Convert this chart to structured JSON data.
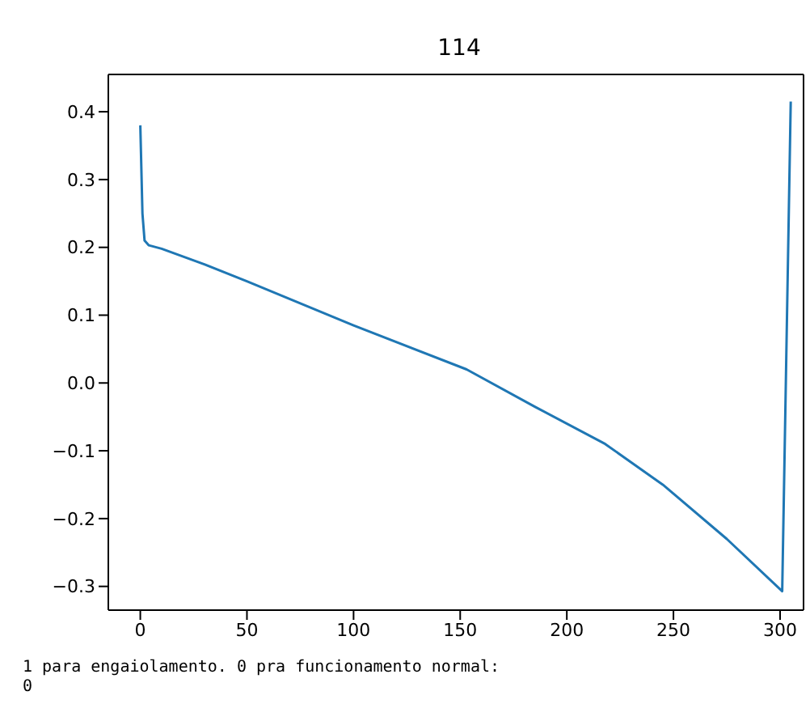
{
  "chart_data": {
    "type": "line",
    "title": "114",
    "x": [
      0,
      1,
      2,
      4,
      10,
      30,
      50,
      100,
      153,
      185,
      218,
      245,
      275,
      301,
      305
    ],
    "series": [
      {
        "color": "#1f77b4",
        "values": [
          0.38,
          0.25,
          0.21,
          0.203,
          0.198,
          0.175,
          0.15,
          0.085,
          0.02,
          -0.035,
          -0.09,
          -0.15,
          -0.23,
          -0.307,
          0.415
        ]
      }
    ],
    "xlim": [
      -15,
      311
    ],
    "xticks": [
      0,
      50,
      100,
      150,
      200,
      250,
      300
    ],
    "ylim": [
      -0.335,
      0.455
    ],
    "yticks": [
      -0.3,
      -0.2,
      -0.1,
      {
        "value": 0,
        "label": "0.0"
      },
      0.1,
      0.2,
      0.3,
      0.4
    ],
    "grid": false,
    "marker": "none",
    "line_style": "solid",
    "annotations": [
      "1 para engaiolamento. 0 pra funcionamento normal:",
      "0"
    ]
  }
}
